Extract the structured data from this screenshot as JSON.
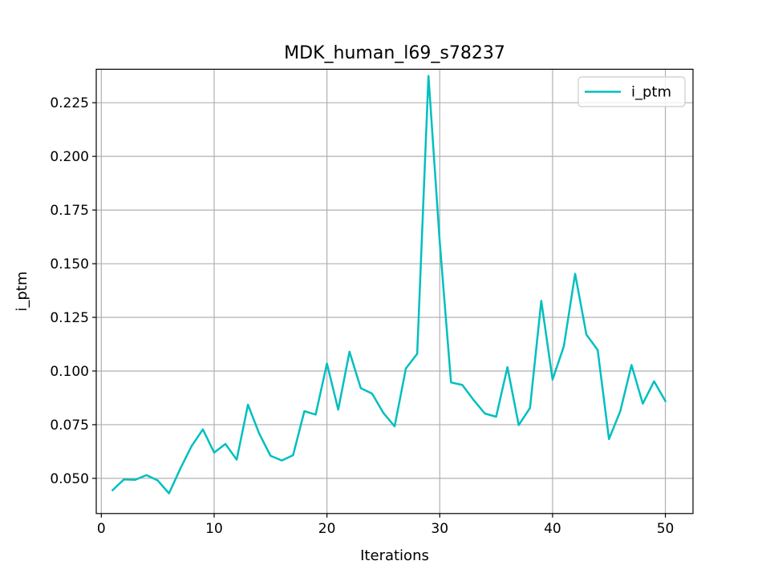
{
  "chart_data": {
    "type": "line",
    "title": "MDK_human_l69_s78237",
    "xlabel": "Iterations",
    "ylabel": "i_ptm",
    "xlim": [
      -0.45,
      52.45
    ],
    "ylim": [
      0.0336,
      0.2406
    ],
    "xticks": [
      0,
      10,
      20,
      30,
      40,
      50
    ],
    "yticks": [
      0.05,
      0.075,
      0.1,
      0.125,
      0.15,
      0.175,
      0.2,
      0.225
    ],
    "ytick_labels": [
      "0.050",
      "0.075",
      "0.100",
      "0.125",
      "0.150",
      "0.175",
      "0.200",
      "0.225"
    ],
    "grid": true,
    "legend_position": "top-right",
    "series": [
      {
        "name": "i_ptm",
        "color": "#00bfbf",
        "x": [
          1,
          2,
          3,
          4,
          5,
          6,
          7,
          8,
          9,
          10,
          11,
          12,
          13,
          14,
          15,
          16,
          17,
          18,
          19,
          20,
          21,
          22,
          23,
          24,
          25,
          26,
          27,
          28,
          29,
          30,
          31,
          32,
          33,
          34,
          35,
          36,
          37,
          38,
          39,
          40,
          41,
          42,
          43,
          44,
          45,
          46,
          47,
          48,
          49,
          50
        ],
        "y": [
          0.0445,
          0.0495,
          0.0493,
          0.0515,
          0.049,
          0.043,
          0.0545,
          0.065,
          0.0728,
          0.062,
          0.066,
          0.0587,
          0.0843,
          0.0708,
          0.0605,
          0.0583,
          0.0608,
          0.0813,
          0.0797,
          0.1035,
          0.082,
          0.109,
          0.092,
          0.0895,
          0.0805,
          0.0742,
          0.1012,
          0.108,
          0.2375,
          0.16,
          0.0947,
          0.0935,
          0.0865,
          0.0802,
          0.0787,
          0.1018,
          0.0748,
          0.0828,
          0.1327,
          0.096,
          0.1115,
          0.1453,
          0.117,
          0.1098,
          0.0683,
          0.0812,
          0.1028,
          0.0848,
          0.0952,
          0.086
        ]
      }
    ]
  }
}
